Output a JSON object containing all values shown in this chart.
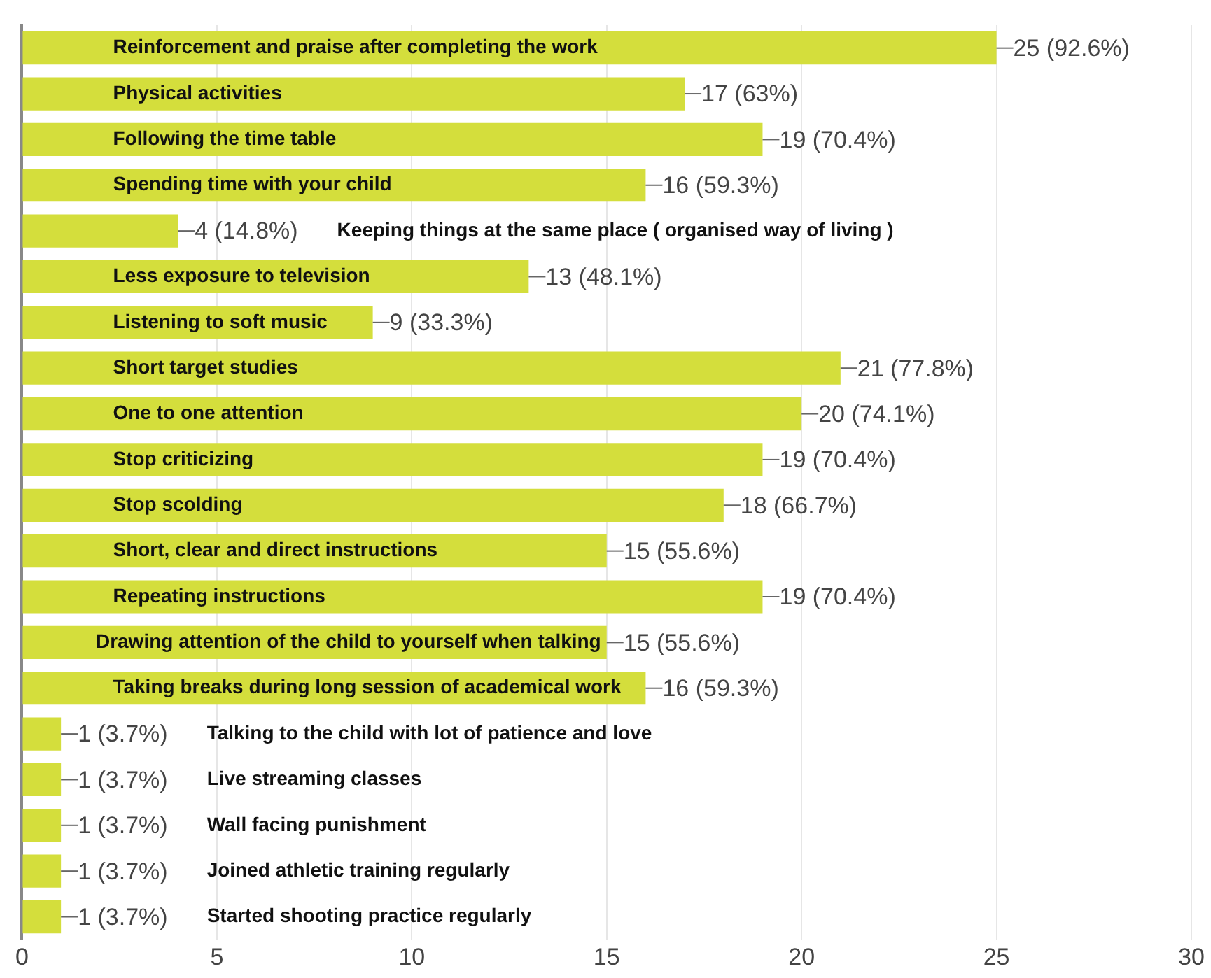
{
  "chart_data": {
    "type": "bar",
    "orientation": "horizontal",
    "categories": [
      "Reinforcement and praise after completing the work",
      "Physical activities",
      "Following the time table",
      "Spending time with your child",
      "Keeping things at the same place ( organised way of living )",
      "Less exposure to television",
      "Listening to soft music",
      "Short target studies",
      "One to one attention",
      "Stop criticizing",
      "Stop scolding",
      "Short, clear and direct instructions",
      "Repeating instructions",
      "Drawing attention of the child to yourself when talking",
      "Taking breaks during long session of academical work",
      "Talking to the child with lot of patience and love",
      "Live streaming classes",
      "Wall facing punishment",
      "Joined athletic training regularly",
      "Started shooting practice regularly"
    ],
    "values": [
      25,
      17,
      19,
      16,
      4,
      13,
      9,
      21,
      20,
      19,
      18,
      15,
      19,
      15,
      16,
      1,
      1,
      1,
      1,
      1
    ],
    "value_labels": [
      "25 (92.6%)",
      "17 (63%)",
      "19 (70.4%)",
      "16 (59.3%)",
      "4 (14.8%)",
      "13 (48.1%)",
      "9 (33.3%)",
      "21 (77.8%)",
      "20 (74.1%)",
      "19 (70.4%)",
      "18 (66.7%)",
      "15 (55.6%)",
      "19 (70.4%)",
      "15 (55.6%)",
      "16 (59.3%)",
      "1 (3.7%)",
      "1 (3.7%)",
      "1 (3.7%)",
      "1 (3.7%)",
      "1 (3.7%)"
    ],
    "color": "#d4de3c",
    "xlim": [
      0,
      30
    ],
    "xticks": [
      0,
      5,
      10,
      15,
      20,
      25,
      30
    ],
    "grid": "x",
    "tick_labels": "x",
    "legend": false
  }
}
